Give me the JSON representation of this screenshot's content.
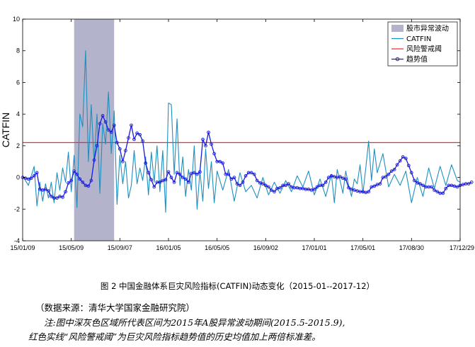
{
  "chart_data": {
    "type": "line",
    "title": "",
    "xlabel": "",
    "ylabel": "CATFIN",
    "ylim": [
      -4,
      10
    ],
    "yticks": [
      "-4",
      "-2",
      "0",
      "2",
      "4",
      "6",
      "8",
      "10"
    ],
    "xticks": [
      "15/01/09",
      "15/05/09",
      "15/09/07",
      "16/01/05",
      "16/05/05",
      "16/09/02",
      "17/01/01",
      "17/05/01",
      "17/08/30",
      "17/12/29"
    ],
    "x_count": 154,
    "legend_position": "top-right",
    "shaded_region": {
      "name": "股市异常波动",
      "x_start": 18,
      "x_end": 32,
      "color": "#b3b3cc"
    },
    "threshold": {
      "name": "风险警戒阈",
      "value": 2.2,
      "color": "#e8302a"
    },
    "series": [
      {
        "name": "CATFIN",
        "color": "#1f8fbf",
        "x": [
          0,
          2,
          4,
          5,
          6,
          7,
          8,
          9,
          10,
          11,
          12,
          13,
          14,
          15,
          16,
          17,
          18,
          19,
          20,
          21,
          22,
          23,
          24,
          25,
          26,
          27,
          28,
          29,
          30,
          31,
          32,
          33,
          34,
          35,
          36,
          37,
          38,
          39,
          40,
          41,
          42,
          43,
          44,
          45,
          46,
          47,
          48,
          49,
          50,
          51,
          52,
          53,
          54,
          55,
          56,
          57,
          58,
          59,
          60,
          61,
          62,
          63,
          64,
          65,
          66,
          67,
          68,
          70,
          72,
          74,
          76,
          78,
          80,
          82,
          84,
          86,
          88,
          90,
          92,
          94,
          96,
          98,
          100,
          102,
          104,
          106,
          108,
          109,
          110,
          111,
          112,
          113,
          114,
          115,
          116,
          117,
          118,
          119,
          120,
          121,
          122,
          123,
          124,
          126,
          128,
          130,
          132,
          134,
          136,
          138,
          140,
          142,
          144,
          146,
          148,
          150,
          152,
          153
        ],
        "values": [
          0.1,
          -0.5,
          0.7,
          -1.8,
          -0.3,
          -1.5,
          -0.4,
          -1.3,
          -0.3,
          -1.6,
          0.3,
          -0.8,
          0.6,
          -0.3,
          1.6,
          -0.9,
          1.4,
          -1.9,
          4.0,
          3.2,
          8.0,
          1.0,
          4.6,
          0.9,
          4.0,
          -1.0,
          3.4,
          2.1,
          5.4,
          1.5,
          4.2,
          -1.7,
          1.4,
          -0.4,
          1.0,
          -1.3,
          -0.5,
          1.7,
          -0.4,
          0.6,
          -0.2,
          1.3,
          -1.1,
          1.6,
          -0.3,
          2.0,
          -0.9,
          1.7,
          -2.2,
          4.7,
          4.6,
          0.2,
          3.7,
          -0.5,
          1.3,
          -1.2,
          0.5,
          -0.8,
          2.0,
          -2.0,
          0.4,
          -1.5,
          1.8,
          -0.7,
          1.0,
          -1.6,
          0.4,
          -0.8,
          0.5,
          -1.5,
          0.3,
          -0.9,
          -0.5,
          -1.3,
          0.0,
          -1.1,
          -0.3,
          -1.0,
          -0.2,
          -0.9,
          0.1,
          -0.6,
          0.4,
          -1.1,
          -0.1,
          -1.2,
          0.2,
          -1.6,
          0.5,
          -0.2,
          -1.0,
          0.4,
          -0.5,
          -1.2,
          -0.1,
          -0.4,
          0.8,
          -1.0,
          0.6,
          2.3,
          -0.2,
          1.8,
          0.3,
          1.5,
          -0.6,
          0.2,
          -0.5,
          0.4,
          -1.6,
          0.0,
          -1.2,
          0.6,
          -0.7,
          0.7,
          -0.5,
          0.8,
          -0.2,
          -0.3
        ]
      },
      {
        "name": "趋势值",
        "color": "#1a1adf",
        "values": [
          0.0,
          -0.05,
          -0.1,
          -0.05,
          0.1,
          0.3,
          -0.75,
          -0.8,
          -0.75,
          -0.85,
          -1.2,
          -1.3,
          -1.3,
          -1.2,
          -1.25,
          -0.9,
          -0.35,
          -0.2,
          0.4,
          0.2,
          -0.1,
          -0.3,
          -0.5,
          -0.55,
          -0.2,
          1.1,
          2.0,
          3.4,
          3.9,
          3.5,
          3.0,
          2.85,
          3.3,
          2.2,
          1.8,
          1.0,
          1.7,
          2.5,
          3.3,
          2.4,
          2.8,
          2.7,
          2.3,
          0.9,
          0.3,
          -0.15,
          -0.6,
          -0.3,
          -0.3,
          -0.2,
          -0.15,
          0.35,
          0.0,
          -0.3,
          0.3,
          0.2,
          0.0,
          -0.1,
          -0.3,
          0.25,
          0.3,
          0.2,
          0.35,
          2.4,
          2.0,
          2.85,
          2.1,
          1.5,
          1.0,
          1.0,
          0.9,
          0.2,
          0.2,
          -0.1,
          0.0,
          -0.4,
          -0.5,
          -0.3,
          0.1,
          0.3,
          0.3,
          0.2,
          -0.2,
          -0.35,
          -0.4,
          -0.5,
          -0.6,
          -0.8,
          -0.9,
          -0.7,
          -0.65,
          -0.5,
          -0.5,
          -0.4,
          -0.6,
          -0.65,
          -0.65,
          -0.7,
          -0.7,
          -0.75,
          -0.75,
          -0.8,
          -0.75,
          -0.6,
          -0.5,
          -0.5,
          -0.3,
          0.0,
          0.1,
          0.05,
          0.0,
          0.05,
          -0.05,
          -0.1,
          -0.65,
          -0.75,
          -0.8,
          -0.85,
          -0.9,
          -0.9,
          -0.95,
          -0.9,
          -0.6,
          -0.55,
          -0.45,
          -0.4,
          0.0,
          0.05,
          0.2,
          0.4,
          0.5,
          0.8,
          1.05,
          1.3,
          1.2,
          0.75,
          0.3,
          -0.2,
          -0.35,
          -0.4,
          -0.5,
          -0.6,
          -0.6,
          -0.6,
          -0.8,
          -0.9,
          -1.0,
          -1.0,
          -0.7,
          -0.5,
          -0.5,
          -0.55,
          -0.6,
          -0.5,
          -0.45,
          -0.4,
          -0.4,
          -0.3
        ]
      }
    ]
  },
  "caption": "图 2  中国金融体系巨灾风险指标(CATFIN)动态变化（2015-01--2017-12）",
  "source_note": "（数据来源：清华大学国家金融研究院）",
  "note_line1": "注:图中深灰色区域所代表区间为2015年A股异常波动期间(2015.5-2015.9),",
  "note_line2": "红色实线“风险警戒阈”为巨灾风险指标趋势值的历史均值加上两倍标准差。"
}
